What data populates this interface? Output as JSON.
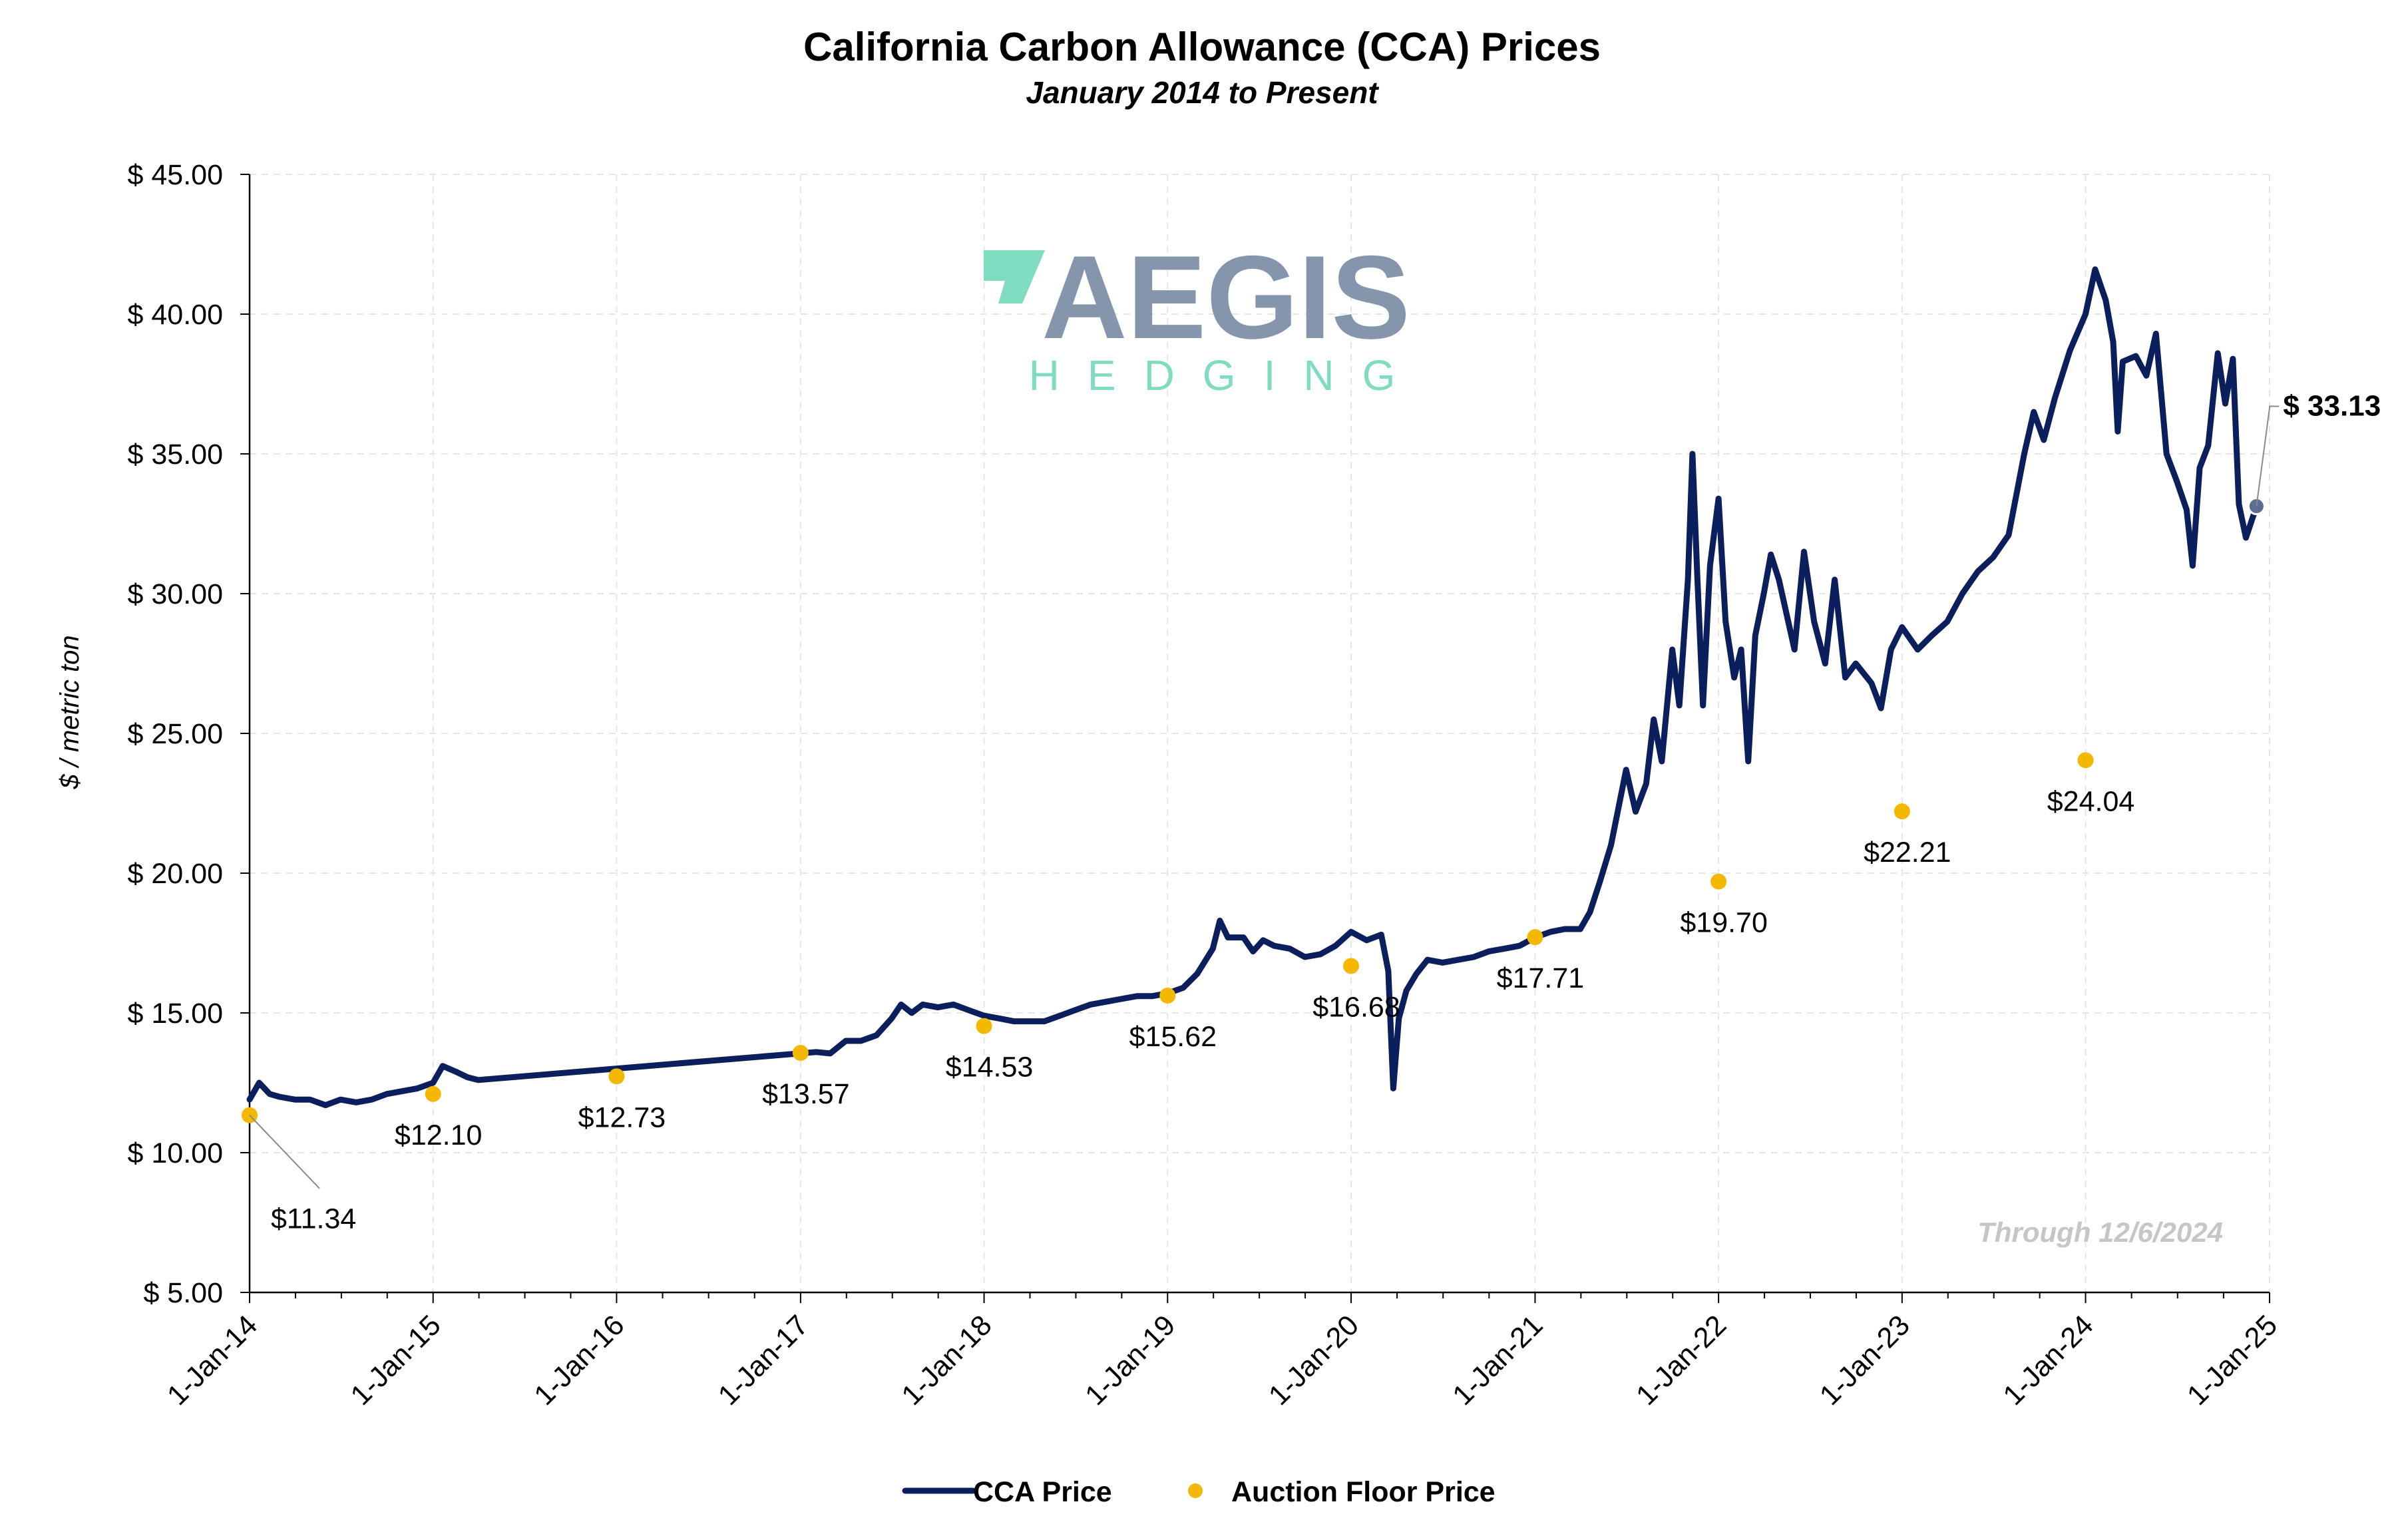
{
  "chart_data": {
    "type": "line",
    "title": "California Carbon Allowance (CCA) Prices",
    "subtitle": "January 2014 to Present",
    "xlabel": "",
    "ylabel": "$ / metric ton",
    "ylim": [
      5,
      45
    ],
    "xlim": [
      "2014-01-01",
      "2025-01-01"
    ],
    "y_ticks": [
      5,
      10,
      15,
      20,
      25,
      30,
      35,
      40,
      45
    ],
    "y_tick_labels": [
      "$ 5.00",
      "$ 10.00",
      "$ 15.00",
      "$ 20.00",
      "$ 25.00",
      "$ 30.00",
      "$ 35.00",
      "$ 40.00",
      "$ 45.00"
    ],
    "x_ticks": [
      "2014-01-01",
      "2015-01-01",
      "2016-01-01",
      "2017-01-01",
      "2018-01-01",
      "2019-01-01",
      "2020-01-01",
      "2021-01-01",
      "2022-01-01",
      "2023-01-01",
      "2024-01-01",
      "2025-01-01"
    ],
    "x_tick_labels": [
      "1-Jan-14",
      "1-Jan-15",
      "1-Jan-16",
      "1-Jan-17",
      "1-Jan-18",
      "1-Jan-19",
      "1-Jan-20",
      "1-Jan-21",
      "1-Jan-22",
      "1-Jan-23",
      "1-Jan-24",
      "1-Jan-25"
    ],
    "grid": true,
    "legend_position": "bottom-center",
    "series": [
      {
        "name": "CCA Price",
        "kind": "line",
        "color": "#0b1f5c",
        "points": [
          [
            "2014-01-01",
            11.9
          ],
          [
            "2014-01-20",
            12.5
          ],
          [
            "2014-02-10",
            12.1
          ],
          [
            "2014-03-01",
            12.0
          ],
          [
            "2014-04-01",
            11.9
          ],
          [
            "2014-05-01",
            11.9
          ],
          [
            "2014-06-01",
            11.7
          ],
          [
            "2014-07-01",
            11.9
          ],
          [
            "2014-08-01",
            11.8
          ],
          [
            "2014-09-01",
            11.9
          ],
          [
            "2014-10-01",
            12.1
          ],
          [
            "2014-11-01",
            12.2
          ],
          [
            "2014-12-01",
            12.3
          ],
          [
            "2015-01-01",
            12.5
          ],
          [
            "2015-01-20",
            13.1
          ],
          [
            "2015-02-15",
            12.9
          ],
          [
            "2015-03-10",
            12.7
          ],
          [
            "2015-04-01",
            12.6
          ],
          [
            "2017-02-01",
            13.6
          ],
          [
            "2017-03-01",
            13.55
          ],
          [
            "2017-04-01",
            14.0
          ],
          [
            "2017-05-01",
            14.0
          ],
          [
            "2017-06-01",
            14.2
          ],
          [
            "2017-07-01",
            14.8
          ],
          [
            "2017-07-20",
            15.3
          ],
          [
            "2017-08-10",
            15.0
          ],
          [
            "2017-09-01",
            15.3
          ],
          [
            "2017-10-01",
            15.2
          ],
          [
            "2017-11-01",
            15.3
          ],
          [
            "2017-12-01",
            15.1
          ],
          [
            "2018-01-01",
            14.9
          ],
          [
            "2018-02-01",
            14.8
          ],
          [
            "2018-03-01",
            14.7
          ],
          [
            "2018-04-01",
            14.7
          ],
          [
            "2018-05-01",
            14.7
          ],
          [
            "2018-06-01",
            14.9
          ],
          [
            "2018-07-01",
            15.1
          ],
          [
            "2018-08-01",
            15.3
          ],
          [
            "2018-09-01",
            15.4
          ],
          [
            "2018-10-01",
            15.5
          ],
          [
            "2018-11-01",
            15.6
          ],
          [
            "2018-12-01",
            15.6
          ],
          [
            "2019-01-01",
            15.7
          ],
          [
            "2019-02-01",
            15.9
          ],
          [
            "2019-03-01",
            16.4
          ],
          [
            "2019-04-01",
            17.3
          ],
          [
            "2019-04-15",
            18.3
          ],
          [
            "2019-05-01",
            17.7
          ],
          [
            "2019-06-01",
            17.7
          ],
          [
            "2019-06-20",
            17.2
          ],
          [
            "2019-07-10",
            17.6
          ],
          [
            "2019-08-01",
            17.4
          ],
          [
            "2019-09-01",
            17.3
          ],
          [
            "2019-10-01",
            17.0
          ],
          [
            "2019-11-01",
            17.1
          ],
          [
            "2019-12-01",
            17.4
          ],
          [
            "2020-01-01",
            17.9
          ],
          [
            "2020-02-01",
            17.6
          ],
          [
            "2020-03-01",
            17.8
          ],
          [
            "2020-03-15",
            16.5
          ],
          [
            "2020-03-25",
            12.3
          ],
          [
            "2020-04-05",
            14.8
          ],
          [
            "2020-04-20",
            15.8
          ],
          [
            "2020-05-10",
            16.4
          ],
          [
            "2020-06-01",
            16.9
          ],
          [
            "2020-07-01",
            16.8
          ],
          [
            "2020-08-01",
            16.9
          ],
          [
            "2020-09-01",
            17.0
          ],
          [
            "2020-10-01",
            17.2
          ],
          [
            "2020-11-01",
            17.3
          ],
          [
            "2020-12-01",
            17.4
          ],
          [
            "2021-01-01",
            17.7
          ],
          [
            "2021-02-01",
            17.9
          ],
          [
            "2021-03-01",
            18.0
          ],
          [
            "2021-04-01",
            18.0
          ],
          [
            "2021-04-20",
            18.6
          ],
          [
            "2021-05-10",
            19.7
          ],
          [
            "2021-06-01",
            21.0
          ],
          [
            "2021-07-01",
            23.7
          ],
          [
            "2021-07-20",
            22.2
          ],
          [
            "2021-08-10",
            23.2
          ],
          [
            "2021-08-25",
            25.5
          ],
          [
            "2021-09-10",
            24.0
          ],
          [
            "2021-10-01",
            28.0
          ],
          [
            "2021-10-15",
            26.0
          ],
          [
            "2021-11-01",
            30.5
          ],
          [
            "2021-11-10",
            35.0
          ],
          [
            "2021-11-20",
            30.5
          ],
          [
            "2021-12-01",
            26.0
          ],
          [
            "2021-12-15",
            31.0
          ],
          [
            "2022-01-01",
            33.4
          ],
          [
            "2022-01-15",
            29.0
          ],
          [
            "2022-02-01",
            27.0
          ],
          [
            "2022-02-15",
            28.0
          ],
          [
            "2022-03-01",
            24.0
          ],
          [
            "2022-03-15",
            28.5
          ],
          [
            "2022-04-01",
            30.0
          ],
          [
            "2022-04-15",
            31.4
          ],
          [
            "2022-05-01",
            30.5
          ],
          [
            "2022-06-01",
            28.0
          ],
          [
            "2022-06-20",
            31.5
          ],
          [
            "2022-07-10",
            29.0
          ],
          [
            "2022-08-01",
            27.5
          ],
          [
            "2022-08-20",
            30.5
          ],
          [
            "2022-09-10",
            27.0
          ],
          [
            "2022-10-01",
            27.5
          ],
          [
            "2022-11-01",
            26.8
          ],
          [
            "2022-11-20",
            25.9
          ],
          [
            "2022-12-10",
            28.0
          ],
          [
            "2023-01-01",
            28.8
          ],
          [
            "2023-02-01",
            28.0
          ],
          [
            "2023-03-01",
            28.5
          ],
          [
            "2023-04-01",
            29.0
          ],
          [
            "2023-05-01",
            30.0
          ],
          [
            "2023-06-01",
            30.8
          ],
          [
            "2023-07-01",
            31.3
          ],
          [
            "2023-08-01",
            32.1
          ],
          [
            "2023-09-01",
            35.0
          ],
          [
            "2023-09-20",
            36.5
          ],
          [
            "2023-10-10",
            35.5
          ],
          [
            "2023-11-01",
            37.0
          ],
          [
            "2023-12-01",
            38.7
          ],
          [
            "2024-01-01",
            40.0
          ],
          [
            "2024-01-20",
            41.6
          ],
          [
            "2024-02-10",
            40.5
          ],
          [
            "2024-02-25",
            39.0
          ],
          [
            "2024-03-05",
            35.8
          ],
          [
            "2024-03-15",
            38.3
          ],
          [
            "2024-04-10",
            38.5
          ],
          [
            "2024-05-01",
            37.8
          ],
          [
            "2024-05-20",
            39.3
          ],
          [
            "2024-06-10",
            35.0
          ],
          [
            "2024-07-01",
            34.0
          ],
          [
            "2024-07-20",
            33.0
          ],
          [
            "2024-08-01",
            31.0
          ],
          [
            "2024-08-15",
            34.5
          ],
          [
            "2024-09-01",
            35.3
          ],
          [
            "2024-09-20",
            38.6
          ],
          [
            "2024-10-05",
            36.8
          ],
          [
            "2024-10-20",
            38.4
          ],
          [
            "2024-11-01",
            33.2
          ],
          [
            "2024-11-15",
            32.0
          ],
          [
            "2024-12-06",
            33.13
          ]
        ]
      },
      {
        "name": "Auction Floor Price",
        "kind": "scatter",
        "color": "#f4b800",
        "points": [
          [
            "2014-01-01",
            11.34
          ],
          [
            "2015-01-01",
            12.1
          ],
          [
            "2016-01-01",
            12.73
          ],
          [
            "2017-01-01",
            13.57
          ],
          [
            "2018-01-01",
            14.53
          ],
          [
            "2019-01-01",
            15.62
          ],
          [
            "2020-01-01",
            16.68
          ],
          [
            "2021-01-01",
            17.71
          ],
          [
            "2022-01-01",
            19.7
          ],
          [
            "2023-01-01",
            22.21
          ],
          [
            "2024-01-01",
            24.04
          ]
        ],
        "labels": [
          "$11.34",
          "$12.10",
          "$12.73",
          "$13.57",
          "$14.53",
          "$15.62",
          "$16.68",
          "$17.71",
          "$19.70",
          "$22.21",
          "$24.04"
        ]
      }
    ],
    "annotations": {
      "latest_value": "$ 33.13",
      "through_date": "Through 12/6/2024"
    }
  },
  "logo": {
    "name": "AEGIS",
    "tagline": "HEDGING",
    "primary_color": "#8595ab",
    "accent_color": "#7fdcc0"
  },
  "legend": {
    "line_label": "CCA Price",
    "dot_label": "Auction Floor Price"
  }
}
